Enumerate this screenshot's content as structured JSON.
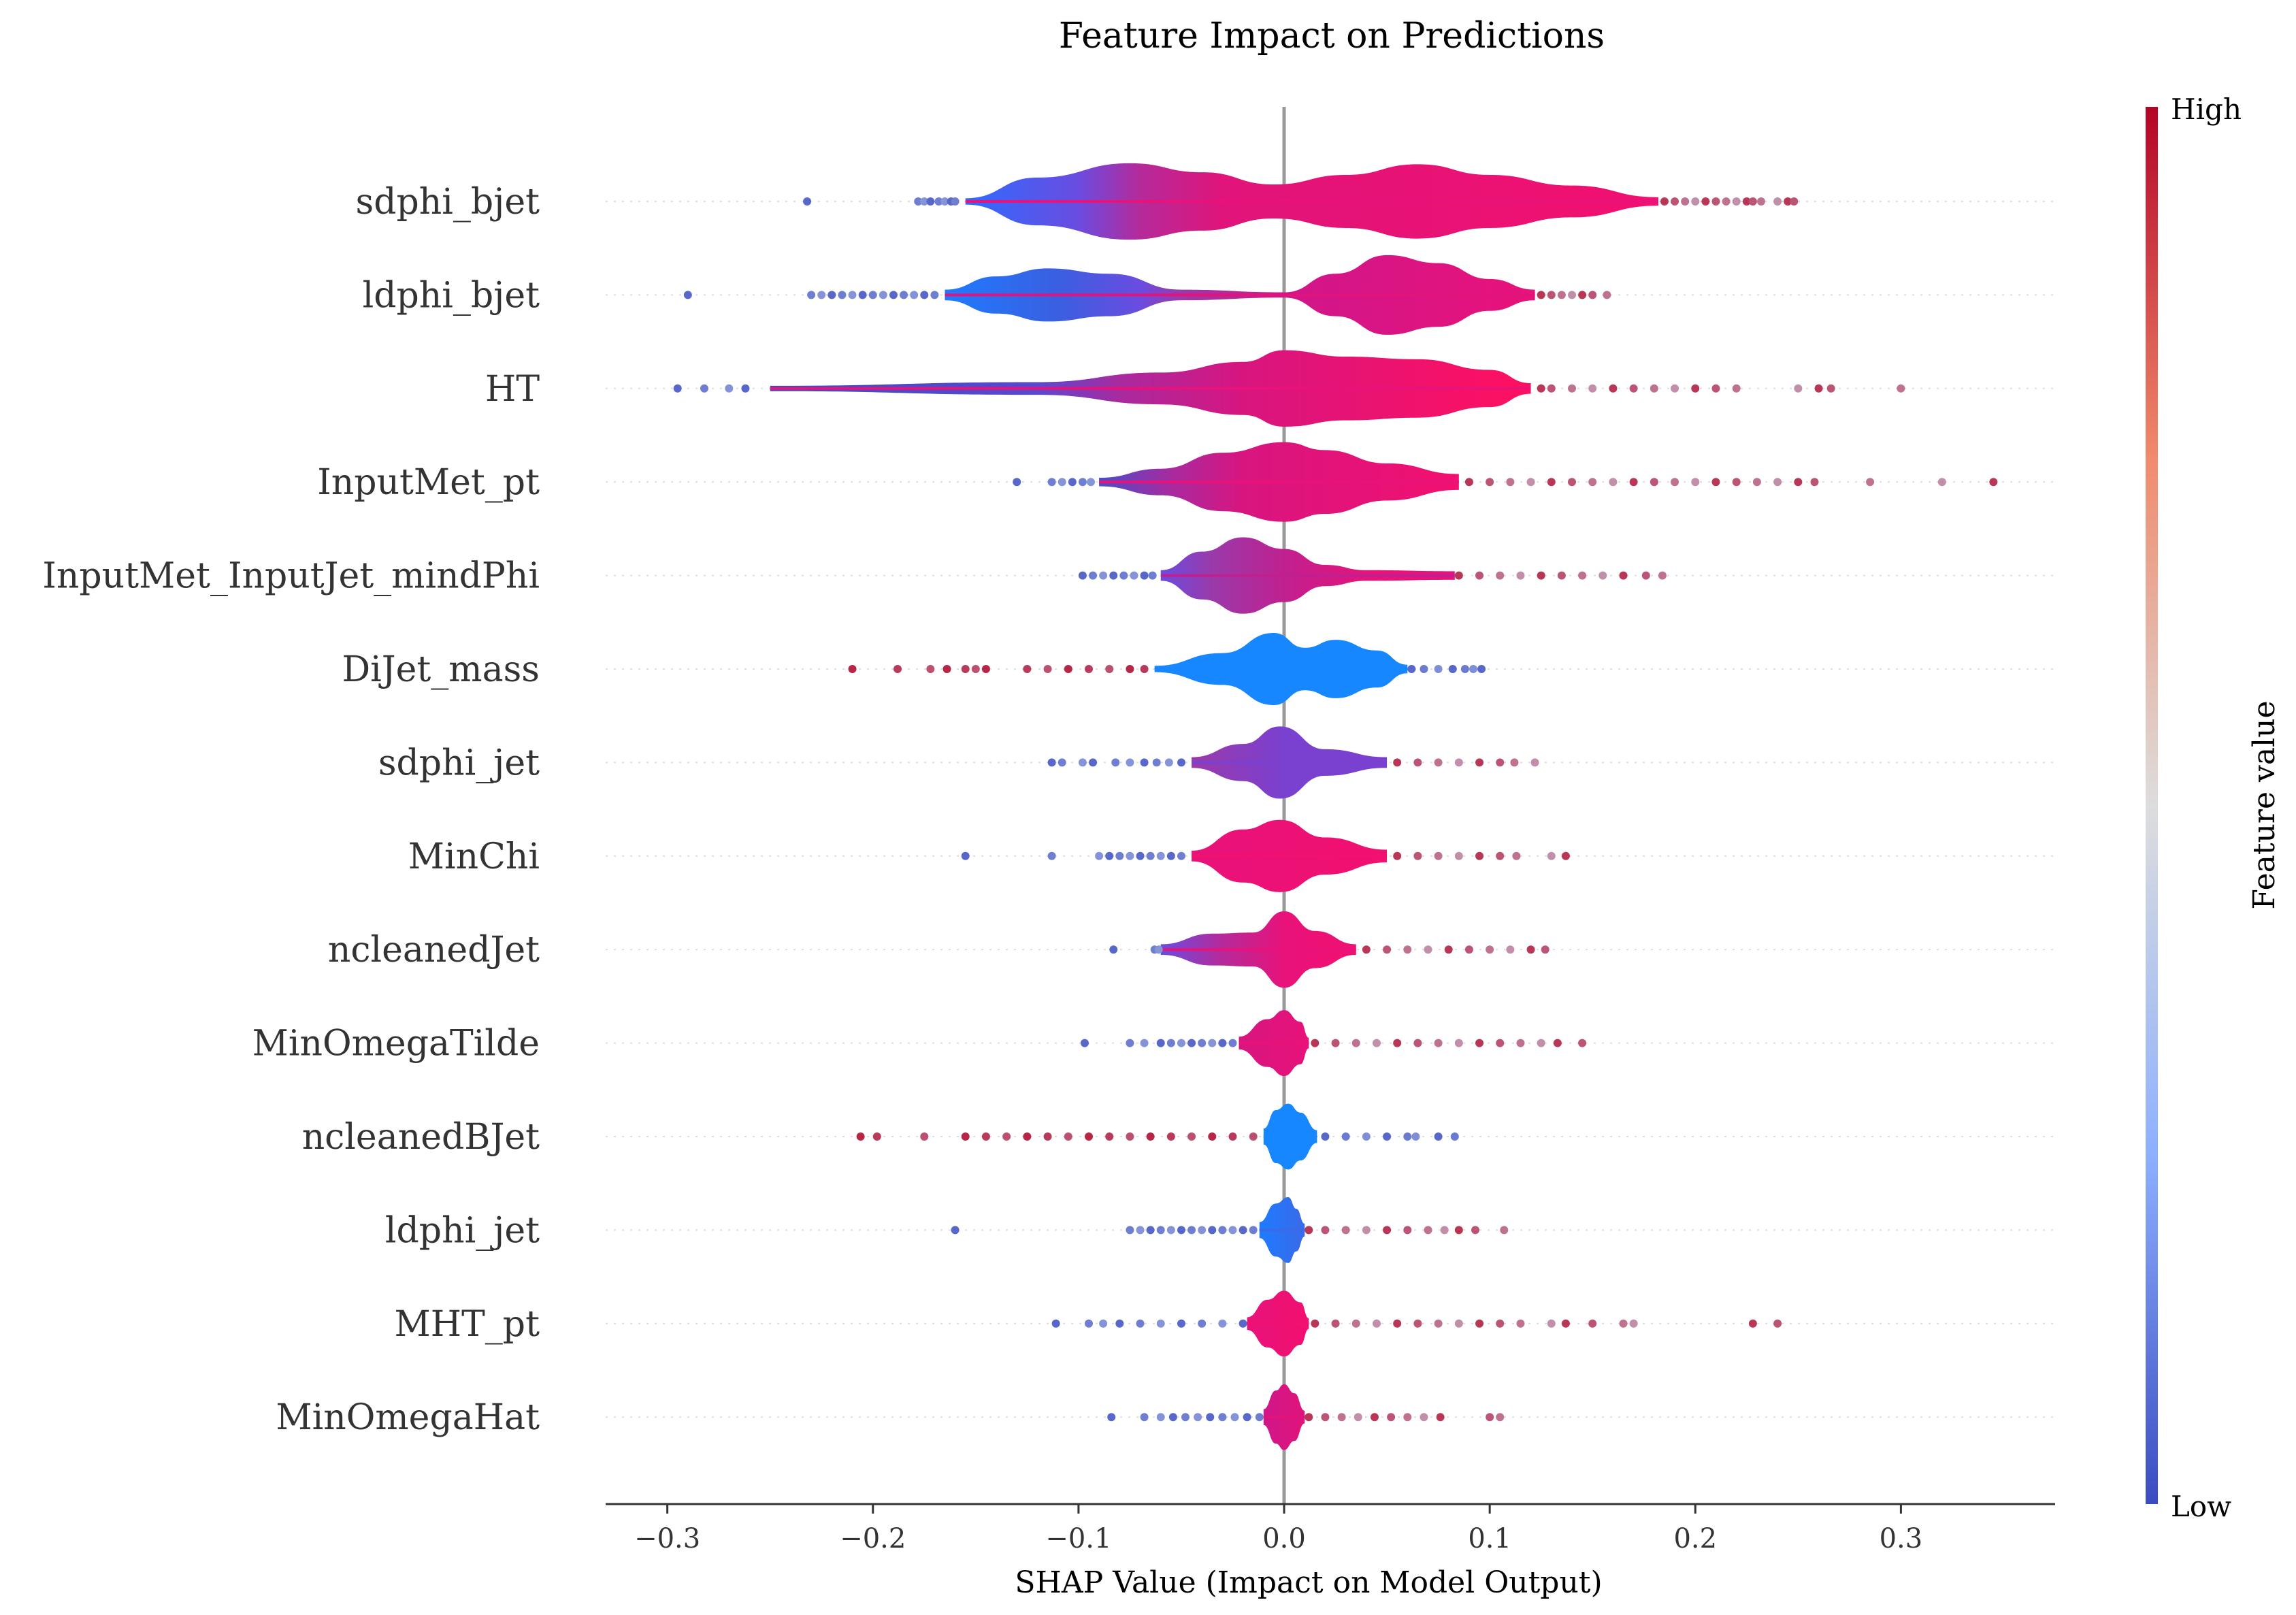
{
  "chart_data": {
    "type": "violin",
    "title": "Feature Impact on Predictions",
    "xlabel": "SHAP Value (Impact on Model Output)",
    "xlim": [
      -0.33,
      0.375
    ],
    "xticks": [
      -0.3,
      -0.2,
      -0.1,
      0.0,
      0.1,
      0.2,
      0.3
    ],
    "xtick_labels": [
      "−0.3",
      "−0.2",
      "−0.1",
      "0.0",
      "0.1",
      "0.2",
      "0.3"
    ],
    "colorbar": {
      "title": "Feature value",
      "high_label": "High",
      "low_label": "Low",
      "high_color": "#b40426",
      "mid_color": "#dddddd",
      "low_color": "#3b4cc0"
    },
    "zero_line": true,
    "features": [
      {
        "name": "sdphi_bjet",
        "min": -0.232,
        "max": 0.248,
        "body_min": -0.155,
        "body_max": 0.182,
        "body_color": "#e8127a",
        "density": [
          [
            -0.155,
            0.06
          ],
          [
            -0.12,
            0.45
          ],
          [
            -0.075,
            0.72
          ],
          [
            -0.04,
            0.55
          ],
          [
            -0.005,
            0.32
          ],
          [
            0.03,
            0.5
          ],
          [
            0.065,
            0.7
          ],
          [
            0.1,
            0.5
          ],
          [
            0.14,
            0.3
          ],
          [
            0.182,
            0.08
          ]
        ],
        "color_stops": [
          [
            -0.155,
            "#2f6bff"
          ],
          [
            -0.1,
            "#6a4ce0"
          ],
          [
            -0.07,
            "#b52a9a"
          ],
          [
            -0.03,
            "#e0147a"
          ],
          [
            0.182,
            "#f21070"
          ]
        ],
        "low_tail": [
          -0.232,
          -0.178,
          -0.175,
          -0.172,
          -0.168,
          -0.165,
          -0.162,
          -0.16
        ],
        "high_tail": [
          0.185,
          0.19,
          0.195,
          0.2,
          0.205,
          0.21,
          0.215,
          0.22,
          0.225,
          0.228,
          0.232,
          0.24,
          0.245,
          0.248
        ]
      },
      {
        "name": "ldphi_bjet",
        "min": -0.29,
        "max": 0.157,
        "body_min": -0.165,
        "body_max": 0.122,
        "body_color": "#e0147a",
        "density": [
          [
            -0.165,
            0.1
          ],
          [
            -0.14,
            0.35
          ],
          [
            -0.115,
            0.5
          ],
          [
            -0.085,
            0.4
          ],
          [
            -0.05,
            0.1
          ],
          [
            -0.0,
            0.05
          ],
          [
            0.025,
            0.4
          ],
          [
            0.05,
            0.75
          ],
          [
            0.075,
            0.6
          ],
          [
            0.1,
            0.3
          ],
          [
            0.122,
            0.1
          ]
        ],
        "color_stops": [
          [
            -0.165,
            "#1e7bff"
          ],
          [
            -0.11,
            "#3a5fe0"
          ],
          [
            -0.07,
            "#6a4ce0"
          ],
          [
            -0.05,
            "#9a3aaa"
          ],
          [
            0.0,
            "#d0168a"
          ],
          [
            0.122,
            "#e8127a"
          ]
        ],
        "low_tail": [
          -0.29,
          -0.23,
          -0.225,
          -0.22,
          -0.215,
          -0.21,
          -0.205,
          -0.2,
          -0.195,
          -0.19,
          -0.185,
          -0.18,
          -0.175,
          -0.17
        ],
        "high_tail": [
          0.125,
          0.13,
          0.135,
          0.14,
          0.145,
          0.15,
          0.157
        ]
      },
      {
        "name": "HT",
        "min": -0.295,
        "max": 0.3,
        "body_min": -0.25,
        "body_max": 0.12,
        "body_color": "#e8127a",
        "density": [
          [
            -0.25,
            0.05
          ],
          [
            -0.12,
            0.12
          ],
          [
            -0.06,
            0.3
          ],
          [
            -0.02,
            0.5
          ],
          [
            0.0,
            0.72
          ],
          [
            0.03,
            0.6
          ],
          [
            0.065,
            0.55
          ],
          [
            0.1,
            0.35
          ],
          [
            0.12,
            0.1
          ]
        ],
        "color_stops": [
          [
            -0.25,
            "#3b4cc0"
          ],
          [
            -0.12,
            "#5a48d0"
          ],
          [
            -0.08,
            "#a82a9f"
          ],
          [
            -0.02,
            "#d8157f"
          ],
          [
            0.12,
            "#ff1060"
          ]
        ],
        "low_tail": [
          -0.295,
          -0.282,
          -0.27,
          -0.262
        ],
        "high_tail": [
          0.125,
          0.13,
          0.14,
          0.15,
          0.16,
          0.17,
          0.18,
          0.19,
          0.2,
          0.21,
          0.22,
          0.25,
          0.26,
          0.266,
          0.3
        ]
      },
      {
        "name": "InputMet_pt",
        "min": -0.13,
        "max": 0.345,
        "body_min": -0.09,
        "body_max": 0.085,
        "body_color": "#e8127a",
        "density": [
          [
            -0.09,
            0.08
          ],
          [
            -0.06,
            0.25
          ],
          [
            -0.03,
            0.55
          ],
          [
            -0.0,
            0.75
          ],
          [
            0.02,
            0.6
          ],
          [
            0.05,
            0.35
          ],
          [
            0.085,
            0.15
          ]
        ],
        "color_stops": [
          [
            -0.09,
            "#4a4cc8"
          ],
          [
            -0.055,
            "#a82a9f"
          ],
          [
            -0.02,
            "#d8157f"
          ],
          [
            0.085,
            "#f21070"
          ]
        ],
        "low_tail": [
          -0.13,
          -0.113,
          -0.108,
          -0.103,
          -0.098,
          -0.094
        ],
        "high_tail": [
          0.09,
          0.1,
          0.11,
          0.12,
          0.13,
          0.14,
          0.15,
          0.16,
          0.17,
          0.18,
          0.19,
          0.2,
          0.21,
          0.22,
          0.23,
          0.24,
          0.25,
          0.258,
          0.285,
          0.32,
          0.345
        ]
      },
      {
        "name": "InputMet_InputJet_mindPhi",
        "min": -0.098,
        "max": 0.184,
        "body_min": -0.06,
        "body_max": 0.083,
        "body_color": "#c0208f",
        "density": [
          [
            -0.06,
            0.1
          ],
          [
            -0.04,
            0.45
          ],
          [
            -0.02,
            0.72
          ],
          [
            0.0,
            0.5
          ],
          [
            0.02,
            0.2
          ],
          [
            0.04,
            0.1
          ],
          [
            0.083,
            0.08
          ]
        ],
        "color_stops": [
          [
            -0.06,
            "#6a4ce0"
          ],
          [
            -0.035,
            "#9a3aaa"
          ],
          [
            0.0,
            "#c0208f"
          ],
          [
            0.045,
            "#e8127a"
          ],
          [
            0.083,
            "#e8127a"
          ]
        ],
        "low_tail": [
          -0.098,
          -0.093,
          -0.088,
          -0.083,
          -0.078,
          -0.073,
          -0.068,
          -0.064
        ],
        "high_tail": [
          0.085,
          0.095,
          0.105,
          0.115,
          0.125,
          0.135,
          0.145,
          0.155,
          0.165,
          0.176,
          0.184
        ]
      },
      {
        "name": "DiJet_mass",
        "min": -0.21,
        "max": 0.096,
        "body_min": -0.063,
        "body_max": 0.06,
        "body_color": "#1787ff",
        "density": [
          [
            -0.063,
            0.06
          ],
          [
            -0.03,
            0.3
          ],
          [
            -0.005,
            0.68
          ],
          [
            0.01,
            0.4
          ],
          [
            0.025,
            0.55
          ],
          [
            0.045,
            0.35
          ],
          [
            0.06,
            0.08
          ]
        ],
        "color_stops": [
          [
            -0.063,
            "#1787ff"
          ],
          [
            0.06,
            "#1787ff"
          ]
        ],
        "low_tail": [
          -0.21,
          -0.188,
          -0.172,
          -0.164,
          -0.155,
          -0.15,
          -0.145,
          -0.125,
          -0.115,
          -0.105,
          -0.095,
          -0.085,
          -0.075,
          -0.068
        ],
        "high_tail": [
          0.062,
          0.068,
          0.075,
          0.082,
          0.088,
          0.092,
          0.096
        ]
      },
      {
        "name": "sdphi_jet",
        "min": -0.113,
        "max": 0.122,
        "body_min": -0.045,
        "body_max": 0.05,
        "body_color": "#7a40d0",
        "density": [
          [
            -0.045,
            0.1
          ],
          [
            -0.02,
            0.35
          ],
          [
            -0.002,
            0.68
          ],
          [
            0.02,
            0.25
          ],
          [
            0.05,
            0.1
          ]
        ],
        "color_stops": [
          [
            -0.045,
            "#9a3aaa"
          ],
          [
            0.0,
            "#7a40d0"
          ],
          [
            0.05,
            "#7a40d0"
          ]
        ],
        "low_tail": [
          -0.113,
          -0.108,
          -0.098,
          -0.093,
          -0.082,
          -0.075,
          -0.068,
          -0.062,
          -0.056,
          -0.05
        ],
        "high_tail": [
          0.055,
          0.065,
          0.075,
          0.085,
          0.095,
          0.105,
          0.112,
          0.122
        ]
      },
      {
        "name": "MinChi",
        "min": -0.155,
        "max": 0.137,
        "body_min": -0.045,
        "body_max": 0.05,
        "body_color": "#f21070",
        "density": [
          [
            -0.045,
            0.1
          ],
          [
            -0.02,
            0.5
          ],
          [
            -0.002,
            0.68
          ],
          [
            0.02,
            0.35
          ],
          [
            0.05,
            0.12
          ]
        ],
        "color_stops": [
          [
            -0.045,
            "#e8127a"
          ],
          [
            0.05,
            "#f21070"
          ]
        ],
        "low_tail": [
          -0.155,
          -0.113,
          -0.09,
          -0.085,
          -0.08,
          -0.075,
          -0.07,
          -0.065,
          -0.06,
          -0.055,
          -0.05
        ],
        "high_tail": [
          0.055,
          0.065,
          0.075,
          0.085,
          0.095,
          0.105,
          0.113,
          0.13,
          0.137
        ]
      },
      {
        "name": "ncleanedJet",
        "min": -0.083,
        "max": 0.127,
        "body_min": -0.06,
        "body_max": 0.035,
        "body_color": "#e8127a",
        "density": [
          [
            -0.06,
            0.1
          ],
          [
            -0.035,
            0.3
          ],
          [
            -0.015,
            0.32
          ],
          [
            0.0,
            0.72
          ],
          [
            0.015,
            0.35
          ],
          [
            0.035,
            0.1
          ]
        ],
        "color_stops": [
          [
            -0.06,
            "#6a4ce0"
          ],
          [
            -0.03,
            "#b52a9a"
          ],
          [
            0.0,
            "#e8127a"
          ],
          [
            0.035,
            "#f21070"
          ]
        ],
        "low_tail": [
          -0.083,
          -0.063,
          -0.061
        ],
        "high_tail": [
          0.04,
          0.05,
          0.06,
          0.07,
          0.08,
          0.09,
          0.1,
          0.11,
          0.12,
          0.127
        ]
      },
      {
        "name": "MinOmegaTilde",
        "min": -0.097,
        "max": 0.145,
        "body_min": -0.022,
        "body_max": 0.012,
        "body_color": "#e8127a",
        "density": [
          [
            -0.022,
            0.12
          ],
          [
            -0.008,
            0.45
          ],
          [
            0.0,
            0.62
          ],
          [
            0.008,
            0.4
          ],
          [
            0.012,
            0.1
          ]
        ],
        "color_stops": [
          [
            -0.022,
            "#d8157f"
          ],
          [
            0.012,
            "#e8127a"
          ]
        ],
        "low_tail": [
          -0.097,
          -0.075,
          -0.068,
          -0.06,
          -0.055,
          -0.05,
          -0.045,
          -0.04,
          -0.035,
          -0.03,
          -0.025
        ],
        "high_tail": [
          0.015,
          0.025,
          0.035,
          0.045,
          0.055,
          0.065,
          0.075,
          0.085,
          0.095,
          0.105,
          0.115,
          0.125,
          0.133,
          0.145
        ]
      },
      {
        "name": "ncleanedBJet",
        "min": -0.206,
        "max": 0.083,
        "body_min": -0.01,
        "body_max": 0.016,
        "body_color": "#1787ff",
        "density": [
          [
            -0.01,
            0.15
          ],
          [
            -0.004,
            0.5
          ],
          [
            0.002,
            0.62
          ],
          [
            0.008,
            0.45
          ],
          [
            0.016,
            0.12
          ]
        ],
        "color_stops": [
          [
            -0.01,
            "#1787ff"
          ],
          [
            0.016,
            "#1787ff"
          ]
        ],
        "low_tail": [
          -0.206,
          -0.198,
          -0.175,
          -0.155,
          -0.145,
          -0.135,
          -0.125,
          -0.115,
          -0.105,
          -0.095,
          -0.085,
          -0.075,
          -0.065,
          -0.055,
          -0.045,
          -0.035,
          -0.025,
          -0.015
        ],
        "high_tail": [
          0.02,
          0.03,
          0.04,
          0.05,
          0.06,
          0.064,
          0.075,
          0.083
        ]
      },
      {
        "name": "ldphi_jet",
        "min": -0.16,
        "max": 0.107,
        "body_min": -0.012,
        "body_max": 0.01,
        "body_color": "#3a6ae8",
        "density": [
          [
            -0.012,
            0.15
          ],
          [
            -0.004,
            0.5
          ],
          [
            0.002,
            0.62
          ],
          [
            0.006,
            0.4
          ],
          [
            0.01,
            0.12
          ]
        ],
        "color_stops": [
          [
            -0.012,
            "#1e7bff"
          ],
          [
            0.01,
            "#3a6ae8"
          ]
        ],
        "low_tail": [
          -0.16,
          -0.075,
          -0.07,
          -0.065,
          -0.06,
          -0.055,
          -0.05,
          -0.045,
          -0.04,
          -0.035,
          -0.03,
          -0.025,
          -0.02,
          -0.015
        ],
        "high_tail": [
          0.012,
          0.02,
          0.03,
          0.04,
          0.05,
          0.06,
          0.07,
          0.078,
          0.085,
          0.093,
          0.107
        ]
      },
      {
        "name": "MHT_pt",
        "min": -0.111,
        "max": 0.24,
        "body_min": -0.018,
        "body_max": 0.012,
        "body_color": "#f21070",
        "density": [
          [
            -0.018,
            0.12
          ],
          [
            -0.008,
            0.45
          ],
          [
            0.0,
            0.62
          ],
          [
            0.008,
            0.4
          ],
          [
            0.012,
            0.1
          ]
        ],
        "color_stops": [
          [
            -0.018,
            "#e8127a"
          ],
          [
            0.012,
            "#f21070"
          ]
        ],
        "low_tail": [
          -0.111,
          -0.095,
          -0.088,
          -0.08,
          -0.07,
          -0.06,
          -0.05,
          -0.04,
          -0.03,
          -0.02
        ],
        "high_tail": [
          0.015,
          0.025,
          0.035,
          0.045,
          0.055,
          0.065,
          0.075,
          0.085,
          0.095,
          0.105,
          0.115,
          0.13,
          0.137,
          0.15,
          0.165,
          0.17,
          0.228,
          0.24
        ]
      },
      {
        "name": "MinOmegaHat",
        "min": -0.084,
        "max": 0.105,
        "body_min": -0.01,
        "body_max": 0.01,
        "body_color": "#e0147a",
        "density": [
          [
            -0.01,
            0.15
          ],
          [
            -0.004,
            0.5
          ],
          [
            0.0,
            0.62
          ],
          [
            0.005,
            0.45
          ],
          [
            0.01,
            0.12
          ]
        ],
        "color_stops": [
          [
            -0.01,
            "#d0168a"
          ],
          [
            0.01,
            "#e0147a"
          ]
        ],
        "low_tail": [
          -0.084,
          -0.068,
          -0.06,
          -0.054,
          -0.048,
          -0.042,
          -0.036,
          -0.03,
          -0.024,
          -0.018,
          -0.012
        ],
        "high_tail": [
          0.012,
          0.02,
          0.028,
          0.036,
          0.044,
          0.052,
          0.06,
          0.068,
          0.076,
          0.1,
          0.105
        ]
      }
    ]
  }
}
